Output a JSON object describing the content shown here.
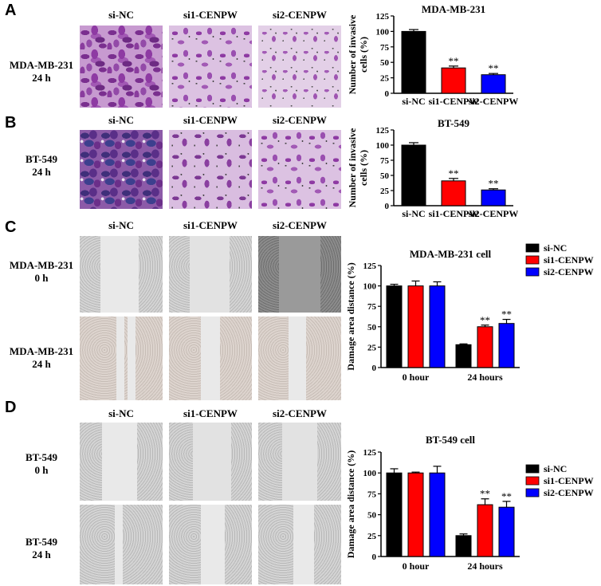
{
  "panels": {
    "A": {
      "letter": "A",
      "columns": [
        "si-NC",
        "si1-CENPW",
        "si2-CENPW"
      ],
      "row_label": [
        "MDA-MB-231",
        "24 h"
      ]
    },
    "B": {
      "letter": "B",
      "columns": [
        "si-NC",
        "si1-CENPW",
        "si2-CENPW"
      ],
      "row_label": [
        "BT-549",
        "24 h"
      ]
    },
    "C": {
      "letter": "C",
      "columns": [
        "si-NC",
        "si1-CENPW",
        "si2-CENPW"
      ],
      "row_labels": [
        [
          "MDA-MB-231",
          "0 h"
        ],
        [
          "MDA-MB-231",
          "24 h"
        ]
      ]
    },
    "D": {
      "letter": "D",
      "columns": [
        "si-NC",
        "si1-CENPW",
        "si2-CENPW"
      ],
      "row_labels": [
        [
          "BT-549",
          "0 h"
        ],
        [
          "BT-549",
          "24 h"
        ]
      ]
    }
  },
  "colors": {
    "si-NC": "#000000",
    "si1-CENPW": "#ff0000",
    "si2-CENPW": "#0000ff"
  },
  "chart_data": [
    {
      "type": "bar",
      "title": "MDA-MB-231",
      "ylabel": [
        "Number of invasive",
        "cells (%)"
      ],
      "categories": [
        "si-NC",
        "si1-CENPW",
        "si2-CENPW"
      ],
      "values": [
        100,
        41,
        30
      ],
      "errors": [
        3,
        3,
        2
      ],
      "significance": [
        "",
        "**",
        "**"
      ],
      "ylim": [
        0,
        125
      ],
      "yticks": [
        0,
        25,
        50,
        75,
        100,
        125
      ]
    },
    {
      "type": "bar",
      "title": "BT-549",
      "ylabel": [
        "Number of invasive",
        "cells (%)"
      ],
      "categories": [
        "si-NC",
        "si1-CENPW",
        "si2-CENPW"
      ],
      "values": [
        100,
        41,
        26
      ],
      "errors": [
        4,
        4,
        2
      ],
      "significance": [
        "",
        "**",
        "**"
      ],
      "ylim": [
        0,
        125
      ],
      "yticks": [
        0,
        25,
        50,
        75,
        100,
        125
      ]
    },
    {
      "type": "bar",
      "title": "MDA-MB-231 cell",
      "ylabel": "Damage area distance (%)",
      "categories": [
        "0 hour",
        "24 hours"
      ],
      "series": [
        {
          "name": "si-NC",
          "values": [
            100,
            28
          ],
          "errors": [
            2,
            1
          ],
          "significance": [
            "",
            ""
          ]
        },
        {
          "name": "si1-CENPW",
          "values": [
            100,
            50
          ],
          "errors": [
            6,
            2
          ],
          "significance": [
            "",
            "**"
          ]
        },
        {
          "name": "si2-CENPW",
          "values": [
            100,
            54
          ],
          "errors": [
            5,
            5
          ],
          "significance": [
            "",
            "**"
          ]
        }
      ],
      "ylim": [
        0,
        125
      ],
      "yticks": [
        0,
        25,
        50,
        75,
        100,
        125
      ],
      "legend": "top-right"
    },
    {
      "type": "bar",
      "title": "BT-549 cell",
      "ylabel": "Damage area distance (%)",
      "categories": [
        "0 hour",
        "24 hours"
      ],
      "series": [
        {
          "name": "si-NC",
          "values": [
            100,
            25
          ],
          "errors": [
            5,
            2
          ],
          "significance": [
            "",
            ""
          ]
        },
        {
          "name": "si1-CENPW",
          "values": [
            100,
            62
          ],
          "errors": [
            1,
            7
          ],
          "significance": [
            "",
            "**"
          ]
        },
        {
          "name": "si2-CENPW",
          "values": [
            100,
            59
          ],
          "errors": [
            8,
            7
          ],
          "significance": [
            "",
            "**"
          ]
        }
      ],
      "ylim": [
        0,
        125
      ],
      "yticks": [
        0,
        25,
        50,
        75,
        100,
        125
      ],
      "legend": "top-right"
    }
  ]
}
